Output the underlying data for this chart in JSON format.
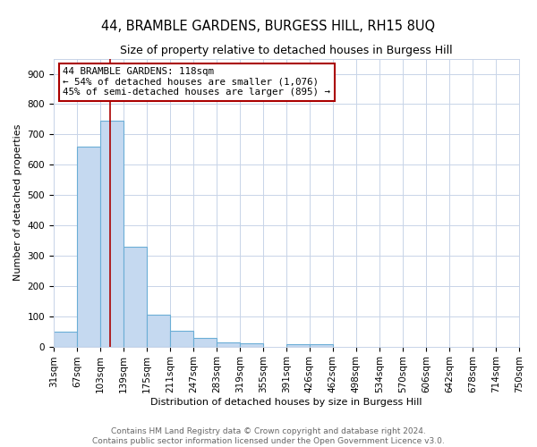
{
  "title": "44, BRAMBLE GARDENS, BURGESS HILL, RH15 8UQ",
  "subtitle": "Size of property relative to detached houses in Burgess Hill",
  "xlabel": "Distribution of detached houses by size in Burgess Hill",
  "ylabel": "Number of detached properties",
  "footer_line1": "Contains HM Land Registry data © Crown copyright and database right 2024.",
  "footer_line2": "Contains public sector information licensed under the Open Government Licence v3.0.",
  "bin_edges": [
    31,
    67,
    103,
    139,
    175,
    211,
    247,
    283,
    319,
    355,
    391,
    426,
    462,
    498,
    534,
    570,
    606,
    642,
    678,
    714,
    750
  ],
  "bar_heights": [
    50,
    660,
    745,
    330,
    105,
    52,
    27,
    14,
    10,
    0,
    8,
    8,
    0,
    0,
    0,
    0,
    0,
    0,
    0,
    0
  ],
  "bar_color": "#c5d9f0",
  "bar_edge_color": "#6baed6",
  "property_size": 118,
  "red_line_color": "#aa0000",
  "annotation_line1": "44 BRAMBLE GARDENS: 118sqm",
  "annotation_line2": "← 54% of detached houses are smaller (1,076)",
  "annotation_line3": "45% of semi-detached houses are larger (895) →",
  "annotation_box_color": "#ffffff",
  "annotation_box_edge_color": "#aa0000",
  "ylim": [
    0,
    950
  ],
  "yticks": [
    0,
    100,
    200,
    300,
    400,
    500,
    600,
    700,
    800,
    900
  ],
  "background_color": "#ffffff",
  "grid_color": "#c8d4e8",
  "title_fontsize": 10.5,
  "subtitle_fontsize": 9,
  "axis_label_fontsize": 8,
  "tick_fontsize": 7.5,
  "annotation_fontsize": 7.8,
  "footer_fontsize": 6.5
}
